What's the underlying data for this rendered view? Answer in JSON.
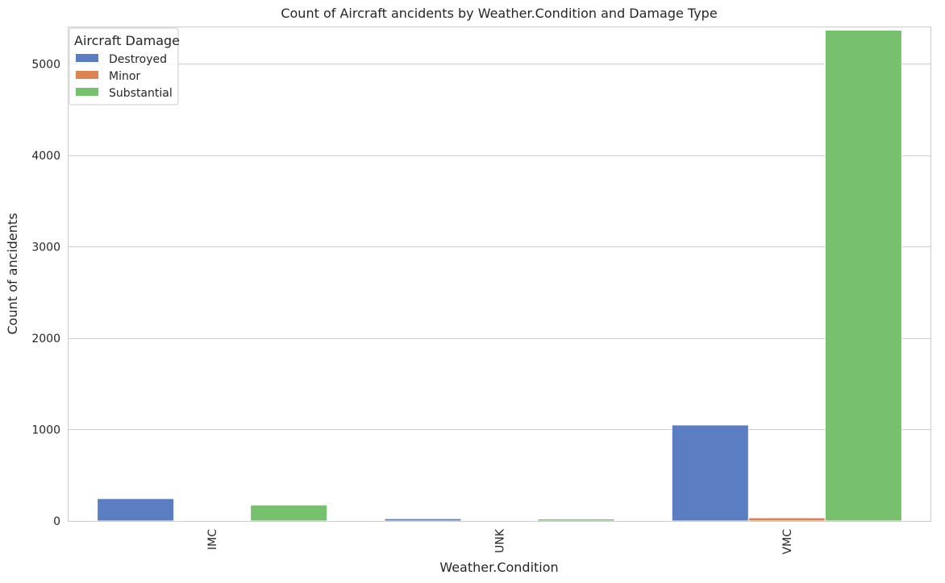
{
  "chart_data": {
    "type": "bar",
    "title": "Count of Aircraft ancidents by Weather.Condition and Damage Type",
    "xlabel": "Weather.Condition",
    "ylabel": "Count of ancidents",
    "categories": [
      "IMC",
      "UNK",
      "VMC"
    ],
    "series": [
      {
        "name": "Destroyed",
        "color": "#5b7dc1",
        "values": [
          245,
          25,
          1050
        ]
      },
      {
        "name": "Minor",
        "color": "#dd8452",
        "values": [
          5,
          2,
          35
        ]
      },
      {
        "name": "Substantial",
        "color": "#76c06e",
        "values": [
          175,
          22,
          5370
        ]
      }
    ],
    "ylim": [
      0,
      5400
    ],
    "yticks": [
      0,
      1000,
      2000,
      3000,
      4000,
      5000
    ],
    "grid": true,
    "legend": {
      "title": "Aircraft Damage",
      "position": "top-left"
    },
    "x_tick_rotation": "vertical"
  }
}
